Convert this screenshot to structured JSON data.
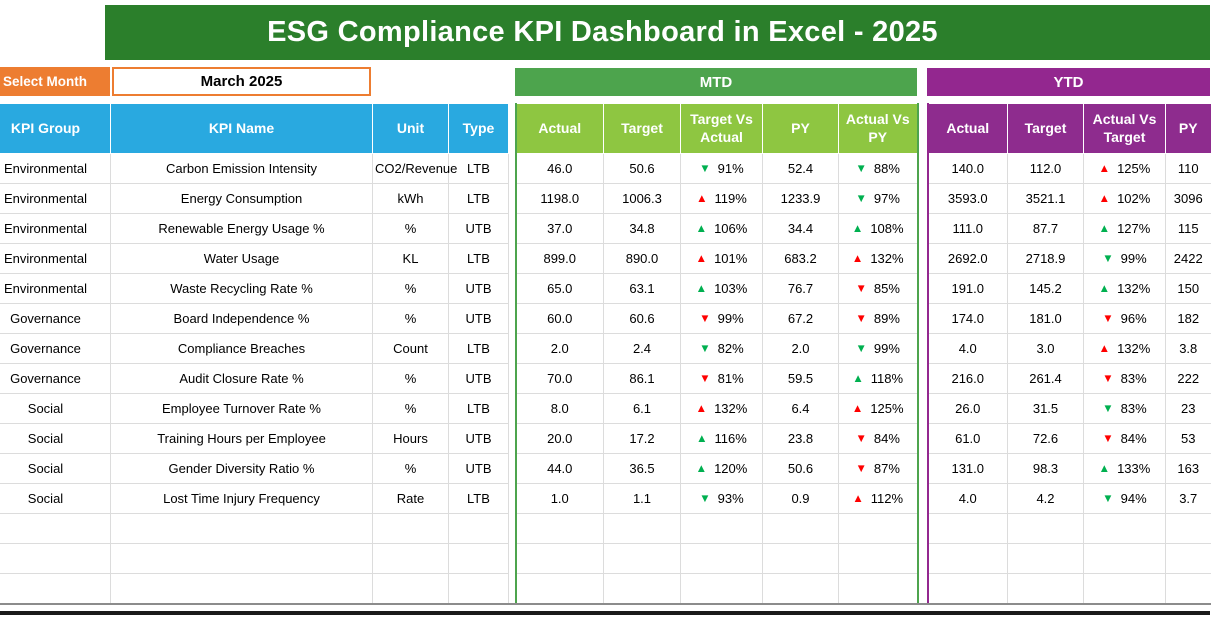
{
  "title": "ESG Compliance KPI Dashboard in Excel - 2025",
  "controls": {
    "select_month_label": "Select Month",
    "selected_month": "March 2025"
  },
  "sections": {
    "mtd": "MTD",
    "ytd": "YTD"
  },
  "columns": {
    "kpi_group": "KPI Group",
    "kpi_name": "KPI Name",
    "unit": "Unit",
    "type": "Type",
    "mtd": [
      "Actual",
      "Target",
      "Target Vs Actual",
      "PY",
      "Actual Vs PY"
    ],
    "ytd": [
      "Actual",
      "Target",
      "Actual Vs Target",
      "PY"
    ]
  },
  "colors": {
    "banner_green": "#2B7F2B",
    "select_month_orange": "#ED7D31",
    "header_blue": "#29A9E0",
    "mtd_bar_green": "#4DA44D",
    "mtd_header_green": "#8EC641",
    "ytd_purple": "#93278F",
    "ytd_header_purple": "#8E2C8E",
    "arrow_good_green": "#00B050",
    "arrow_bad_red": "#FF0000",
    "gridline_gray": "#DCDCDC"
  },
  "empty_row_count": 3,
  "rows": [
    {
      "group": "Environmental",
      "name": "Carbon Emission Intensity",
      "unit": "CO2/Revenue",
      "type": "LTB",
      "mtd": {
        "actual": "46.0",
        "target": "50.6",
        "target_vs_actual": {
          "dir": "down",
          "color": "green",
          "value": "91%"
        },
        "py": "52.4",
        "actual_vs_py": {
          "dir": "down",
          "color": "green",
          "value": "88%"
        }
      },
      "ytd": {
        "actual": "140.0",
        "target": "112.0",
        "actual_vs_target": {
          "dir": "up",
          "color": "red",
          "value": "125%"
        },
        "py": "110"
      }
    },
    {
      "group": "Environmental",
      "name": "Energy Consumption",
      "unit": "kWh",
      "type": "LTB",
      "mtd": {
        "actual": "1198.0",
        "target": "1006.3",
        "target_vs_actual": {
          "dir": "up",
          "color": "red",
          "value": "119%"
        },
        "py": "1233.9",
        "actual_vs_py": {
          "dir": "down",
          "color": "green",
          "value": "97%"
        }
      },
      "ytd": {
        "actual": "3593.0",
        "target": "3521.1",
        "actual_vs_target": {
          "dir": "up",
          "color": "red",
          "value": "102%"
        },
        "py": "3096"
      }
    },
    {
      "group": "Environmental",
      "name": "Renewable Energy Usage %",
      "unit": "%",
      "type": "UTB",
      "mtd": {
        "actual": "37.0",
        "target": "34.8",
        "target_vs_actual": {
          "dir": "up",
          "color": "green",
          "value": "106%"
        },
        "py": "34.4",
        "actual_vs_py": {
          "dir": "up",
          "color": "green",
          "value": "108%"
        }
      },
      "ytd": {
        "actual": "111.0",
        "target": "87.7",
        "actual_vs_target": {
          "dir": "up",
          "color": "green",
          "value": "127%"
        },
        "py": "115"
      }
    },
    {
      "group": "Environmental",
      "name": "Water Usage",
      "unit": "KL",
      "type": "LTB",
      "mtd": {
        "actual": "899.0",
        "target": "890.0",
        "target_vs_actual": {
          "dir": "up",
          "color": "red",
          "value": "101%"
        },
        "py": "683.2",
        "actual_vs_py": {
          "dir": "up",
          "color": "red",
          "value": "132%"
        }
      },
      "ytd": {
        "actual": "2692.0",
        "target": "2718.9",
        "actual_vs_target": {
          "dir": "down",
          "color": "green",
          "value": "99%"
        },
        "py": "2422"
      }
    },
    {
      "group": "Environmental",
      "name": "Waste Recycling Rate %",
      "unit": "%",
      "type": "UTB",
      "mtd": {
        "actual": "65.0",
        "target": "63.1",
        "target_vs_actual": {
          "dir": "up",
          "color": "green",
          "value": "103%"
        },
        "py": "76.7",
        "actual_vs_py": {
          "dir": "down",
          "color": "red",
          "value": "85%"
        }
      },
      "ytd": {
        "actual": "191.0",
        "target": "145.2",
        "actual_vs_target": {
          "dir": "up",
          "color": "green",
          "value": "132%"
        },
        "py": "150"
      }
    },
    {
      "group": "Governance",
      "name": "Board Independence %",
      "unit": "%",
      "type": "UTB",
      "mtd": {
        "actual": "60.0",
        "target": "60.6",
        "target_vs_actual": {
          "dir": "down",
          "color": "red",
          "value": "99%"
        },
        "py": "67.2",
        "actual_vs_py": {
          "dir": "down",
          "color": "red",
          "value": "89%"
        }
      },
      "ytd": {
        "actual": "174.0",
        "target": "181.0",
        "actual_vs_target": {
          "dir": "down",
          "color": "red",
          "value": "96%"
        },
        "py": "182"
      }
    },
    {
      "group": "Governance",
      "name": "Compliance Breaches",
      "unit": "Count",
      "type": "LTB",
      "mtd": {
        "actual": "2.0",
        "target": "2.4",
        "target_vs_actual": {
          "dir": "down",
          "color": "green",
          "value": "82%"
        },
        "py": "2.0",
        "actual_vs_py": {
          "dir": "down",
          "color": "green",
          "value": "99%"
        }
      },
      "ytd": {
        "actual": "4.0",
        "target": "3.0",
        "actual_vs_target": {
          "dir": "up",
          "color": "red",
          "value": "132%"
        },
        "py": "3.8"
      }
    },
    {
      "group": "Governance",
      "name": "Audit Closure Rate %",
      "unit": "%",
      "type": "UTB",
      "mtd": {
        "actual": "70.0",
        "target": "86.1",
        "target_vs_actual": {
          "dir": "down",
          "color": "red",
          "value": "81%"
        },
        "py": "59.5",
        "actual_vs_py": {
          "dir": "up",
          "color": "green",
          "value": "118%"
        }
      },
      "ytd": {
        "actual": "216.0",
        "target": "261.4",
        "actual_vs_target": {
          "dir": "down",
          "color": "red",
          "value": "83%"
        },
        "py": "222"
      }
    },
    {
      "group": "Social",
      "name": "Employee Turnover Rate %",
      "unit": "%",
      "type": "LTB",
      "mtd": {
        "actual": "8.0",
        "target": "6.1",
        "target_vs_actual": {
          "dir": "up",
          "color": "red",
          "value": "132%"
        },
        "py": "6.4",
        "actual_vs_py": {
          "dir": "up",
          "color": "red",
          "value": "125%"
        }
      },
      "ytd": {
        "actual": "26.0",
        "target": "31.5",
        "actual_vs_target": {
          "dir": "down",
          "color": "green",
          "value": "83%"
        },
        "py": "23"
      }
    },
    {
      "group": "Social",
      "name": "Training Hours per Employee",
      "unit": "Hours",
      "type": "UTB",
      "mtd": {
        "actual": "20.0",
        "target": "17.2",
        "target_vs_actual": {
          "dir": "up",
          "color": "green",
          "value": "116%"
        },
        "py": "23.8",
        "actual_vs_py": {
          "dir": "down",
          "color": "red",
          "value": "84%"
        }
      },
      "ytd": {
        "actual": "61.0",
        "target": "72.6",
        "actual_vs_target": {
          "dir": "down",
          "color": "red",
          "value": "84%"
        },
        "py": "53"
      }
    },
    {
      "group": "Social",
      "name": "Gender Diversity Ratio %",
      "unit": "%",
      "type": "UTB",
      "mtd": {
        "actual": "44.0",
        "target": "36.5",
        "target_vs_actual": {
          "dir": "up",
          "color": "green",
          "value": "120%"
        },
        "py": "50.6",
        "actual_vs_py": {
          "dir": "down",
          "color": "red",
          "value": "87%"
        }
      },
      "ytd": {
        "actual": "131.0",
        "target": "98.3",
        "actual_vs_target": {
          "dir": "up",
          "color": "green",
          "value": "133%"
        },
        "py": "163"
      }
    },
    {
      "group": "Social",
      "name": "Lost Time Injury Frequency",
      "unit": "Rate",
      "type": "LTB",
      "mtd": {
        "actual": "1.0",
        "target": "1.1",
        "target_vs_actual": {
          "dir": "down",
          "color": "green",
          "value": "93%"
        },
        "py": "0.9",
        "actual_vs_py": {
          "dir": "up",
          "color": "red",
          "value": "112%"
        }
      },
      "ytd": {
        "actual": "4.0",
        "target": "4.2",
        "actual_vs_target": {
          "dir": "down",
          "color": "green",
          "value": "94%"
        },
        "py": "3.7"
      }
    }
  ]
}
